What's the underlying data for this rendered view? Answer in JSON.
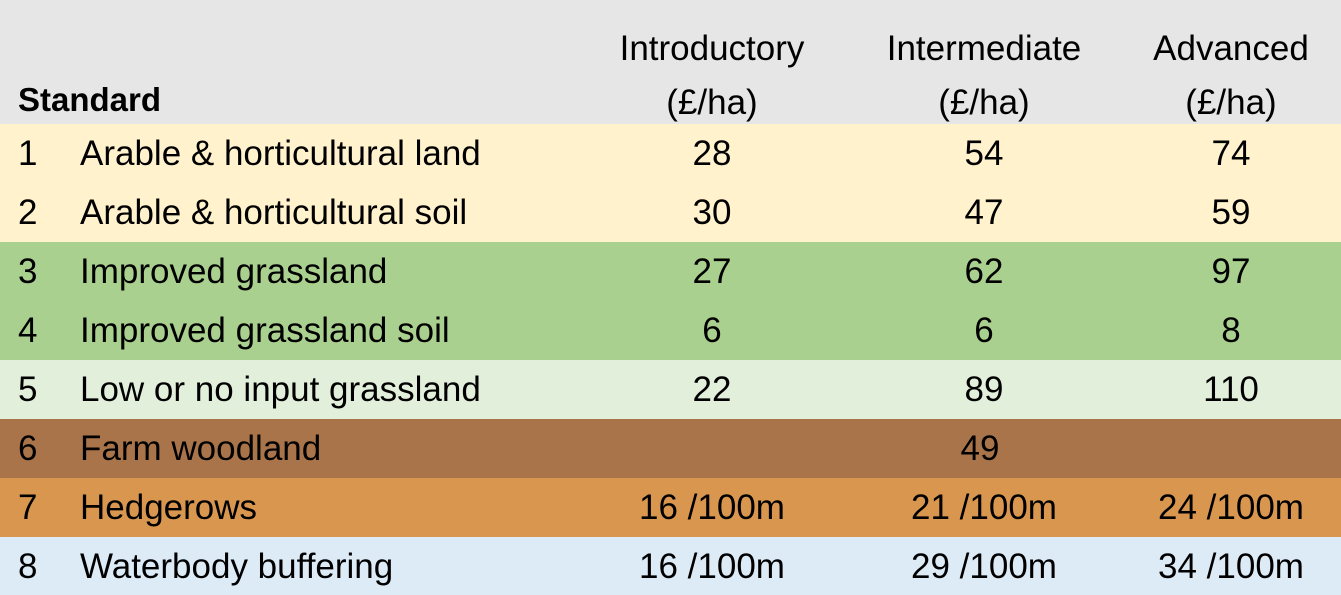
{
  "header": {
    "standard_label": "Standard",
    "columns": [
      {
        "line1": "Introductory",
        "line2": "(£/ha)"
      },
      {
        "line1": "Intermediate",
        "line2": "(£/ha)"
      },
      {
        "line1": "Advanced",
        "line2": "(£/ha)"
      }
    ]
  },
  "colors": {
    "header": "#e7e6e6",
    "arable": "#fff2cc",
    "improved_grassland": "#a9d08e",
    "low_input_grassland": "#e2efda",
    "woodland": "#a9744a",
    "hedgerows": "#d9964f",
    "waterbody": "#ddebf7"
  },
  "rows": [
    {
      "num": "1",
      "name": "Arable & horticultural land",
      "introductory": "28",
      "intermediate": "54",
      "advanced": "74",
      "color": "#fff2cc"
    },
    {
      "num": "2",
      "name": "Arable & horticultural soil",
      "introductory": "30",
      "intermediate": "47",
      "advanced": "59",
      "color": "#fff2cc"
    },
    {
      "num": "3",
      "name": "Improved grassland",
      "introductory": "27",
      "intermediate": "62",
      "advanced": "97",
      "color": "#a9d08e"
    },
    {
      "num": "4",
      "name": "Improved grassland soil",
      "introductory": "6",
      "intermediate": "6",
      "advanced": "8",
      "color": "#a9d08e"
    },
    {
      "num": "5",
      "name": "Low or no input grassland",
      "introductory": "22",
      "intermediate": "89",
      "advanced": "110",
      "color": "#e2efda"
    },
    {
      "num": "6",
      "name": "Farm woodland",
      "value": "49",
      "color": "#a9744a"
    },
    {
      "num": "7",
      "name": "Hedgerows",
      "introductory": "16 /100m",
      "intermediate": "21 /100m",
      "advanced": "24 /100m",
      "color": "#d9964f"
    },
    {
      "num": "8",
      "name": "Waterbody buffering",
      "introductory": "16 /100m",
      "intermediate": "29 /100m",
      "advanced": "34 /100m",
      "color": "#ddebf7"
    }
  ]
}
